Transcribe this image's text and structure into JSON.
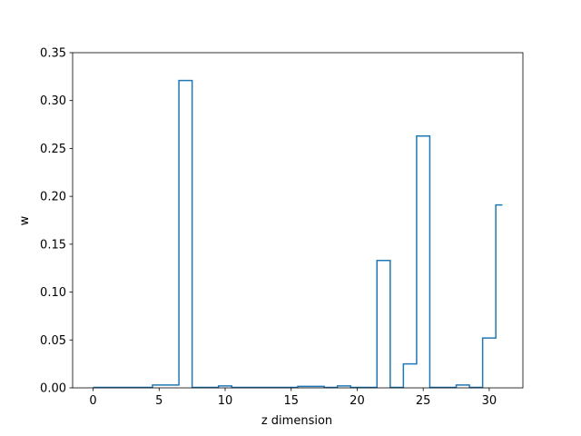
{
  "chart_data": {
    "type": "line",
    "drawstyle": "steps-mid",
    "title": "",
    "xlabel": "z dimension",
    "ylabel": "w",
    "xlim": [
      -1.55,
      32.55
    ],
    "ylim": [
      0,
      0.35
    ],
    "xticks": [
      0,
      5,
      10,
      15,
      20,
      25,
      30
    ],
    "xtick_labels": [
      "0",
      "5",
      "10",
      "15",
      "20",
      "25",
      "30"
    ],
    "yticks": [
      0.0,
      0.05,
      0.1,
      0.15,
      0.2,
      0.25,
      0.3,
      0.35
    ],
    "ytick_labels": [
      "0.00",
      "0.05",
      "0.10",
      "0.15",
      "0.20",
      "0.25",
      "0.30",
      "0.35"
    ],
    "grid": false,
    "legend": false,
    "series": [
      {
        "color": "#1f77b4",
        "x": [
          0,
          1,
          2,
          3,
          4,
          5,
          6,
          7,
          8,
          9,
          10,
          11,
          12,
          13,
          14,
          15,
          16,
          17,
          18,
          19,
          20,
          21,
          22,
          23,
          24,
          25,
          26,
          27,
          28,
          29,
          30,
          31
        ],
        "y": [
          0.0005,
          0.0005,
          0.0005,
          0.0005,
          0.0005,
          0.003,
          0.003,
          0.321,
          0.0005,
          0.0005,
          0.002,
          0.0005,
          0.0005,
          0.0005,
          0.0005,
          0.0005,
          0.0015,
          0.0015,
          0.0005,
          0.002,
          0.0005,
          0.0005,
          0.133,
          0.0005,
          0.025,
          0.263,
          0.0005,
          0.0005,
          0.003,
          0.0005,
          0.052,
          0.191
        ]
      }
    ]
  }
}
